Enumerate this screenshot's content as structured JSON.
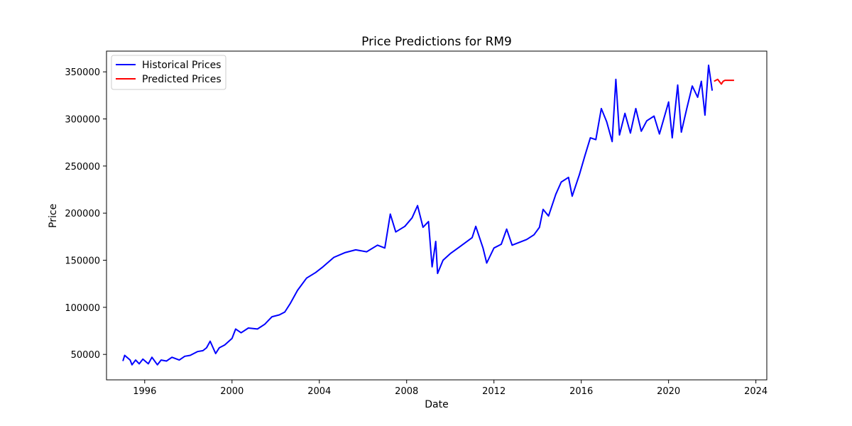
{
  "chart_data": {
    "type": "line",
    "title": "Price Predictions for RM9",
    "xlabel": "Date",
    "ylabel": "Price",
    "x_ticks": [
      "1996",
      "2000",
      "2004",
      "2008",
      "2012",
      "2016",
      "2020",
      "2024"
    ],
    "y_ticks": [
      "50000",
      "100000",
      "150000",
      "200000",
      "250000",
      "300000",
      "350000"
    ],
    "xlim": [
      "1994-04-01",
      "2024-07-01"
    ],
    "ylim": [
      23000,
      372000
    ],
    "grid": false,
    "legend_position": "top-left",
    "series": [
      {
        "name": "Historical Prices",
        "color": "#0000ff",
        "points": [
          [
            "1995-01-01",
            43000
          ],
          [
            "1995-02-01",
            49000
          ],
          [
            "1995-05-01",
            44000
          ],
          [
            "1995-06-01",
            39000
          ],
          [
            "1995-08-01",
            44000
          ],
          [
            "1995-10-01",
            40000
          ],
          [
            "1995-12-01",
            45000
          ],
          [
            "1996-03-01",
            40000
          ],
          [
            "1996-05-01",
            47000
          ],
          [
            "1996-08-01",
            39000
          ],
          [
            "1996-10-01",
            44000
          ],
          [
            "1997-01-01",
            43000
          ],
          [
            "1997-04-01",
            47000
          ],
          [
            "1997-08-01",
            44000
          ],
          [
            "1997-11-01",
            48000
          ],
          [
            "1998-02-01",
            49000
          ],
          [
            "1998-06-01",
            53000
          ],
          [
            "1998-09-01",
            54000
          ],
          [
            "1998-11-01",
            57000
          ],
          [
            "1999-01-01",
            64000
          ],
          [
            "1999-04-01",
            51000
          ],
          [
            "1999-06-01",
            57000
          ],
          [
            "1999-09-01",
            60000
          ],
          [
            "2000-01-01",
            67000
          ],
          [
            "2000-03-01",
            77000
          ],
          [
            "2000-06-01",
            73000
          ],
          [
            "2000-10-01",
            78000
          ],
          [
            "2001-03-01",
            77000
          ],
          [
            "2001-07-01",
            82000
          ],
          [
            "2001-11-01",
            90000
          ],
          [
            "2002-03-01",
            92000
          ],
          [
            "2002-06-01",
            95000
          ],
          [
            "2002-09-01",
            104000
          ],
          [
            "2003-01-01",
            118000
          ],
          [
            "2003-06-01",
            131000
          ],
          [
            "2003-11-01",
            137000
          ],
          [
            "2004-03-01",
            143000
          ],
          [
            "2004-09-01",
            153000
          ],
          [
            "2005-03-01",
            158000
          ],
          [
            "2005-09-01",
            161000
          ],
          [
            "2006-03-01",
            159000
          ],
          [
            "2006-09-01",
            166000
          ],
          [
            "2007-01-01",
            163000
          ],
          [
            "2007-04-01",
            199000
          ],
          [
            "2007-07-01",
            180000
          ],
          [
            "2007-12-01",
            186000
          ],
          [
            "2008-04-01",
            195000
          ],
          [
            "2008-07-01",
            208000
          ],
          [
            "2008-10-01",
            185000
          ],
          [
            "2009-01-01",
            191000
          ],
          [
            "2009-03-01",
            143000
          ],
          [
            "2009-05-01",
            170000
          ],
          [
            "2009-06-01",
            136000
          ],
          [
            "2009-09-01",
            150000
          ],
          [
            "2010-01-01",
            157000
          ],
          [
            "2010-06-01",
            164000
          ],
          [
            "2011-01-01",
            174000
          ],
          [
            "2011-03-01",
            186000
          ],
          [
            "2011-07-01",
            163000
          ],
          [
            "2011-09-01",
            147000
          ],
          [
            "2012-01-01",
            163000
          ],
          [
            "2012-05-01",
            167000
          ],
          [
            "2012-08-01",
            183000
          ],
          [
            "2012-11-01",
            166000
          ],
          [
            "2013-03-01",
            169000
          ],
          [
            "2013-07-01",
            172000
          ],
          [
            "2013-11-01",
            177000
          ],
          [
            "2014-02-01",
            185000
          ],
          [
            "2014-04-01",
            204000
          ],
          [
            "2014-07-01",
            197000
          ],
          [
            "2014-11-01",
            220000
          ],
          [
            "2015-02-01",
            233000
          ],
          [
            "2015-06-01",
            238000
          ],
          [
            "2015-08-01",
            218000
          ],
          [
            "2015-12-01",
            241000
          ],
          [
            "2016-03-01",
            261000
          ],
          [
            "2016-06-01",
            280000
          ],
          [
            "2016-09-01",
            278000
          ],
          [
            "2016-12-01",
            311000
          ],
          [
            "2017-03-01",
            297000
          ],
          [
            "2017-06-01",
            276000
          ],
          [
            "2017-08-01",
            342000
          ],
          [
            "2017-10-01",
            283000
          ],
          [
            "2018-01-01",
            306000
          ],
          [
            "2018-04-01",
            285000
          ],
          [
            "2018-07-01",
            311000
          ],
          [
            "2018-10-01",
            287000
          ],
          [
            "2019-01-01",
            298000
          ],
          [
            "2019-05-01",
            303000
          ],
          [
            "2019-08-01",
            284000
          ],
          [
            "2020-01-01",
            318000
          ],
          [
            "2020-03-01",
            280000
          ],
          [
            "2020-06-01",
            336000
          ],
          [
            "2020-08-01",
            286000
          ],
          [
            "2020-11-01",
            311000
          ],
          [
            "2021-02-01",
            335000
          ],
          [
            "2021-05-01",
            323000
          ],
          [
            "2021-07-01",
            340000
          ],
          [
            "2021-09-01",
            304000
          ],
          [
            "2021-11-01",
            357000
          ],
          [
            "2022-01-01",
            330000
          ]
        ]
      },
      {
        "name": "Predicted Prices",
        "color": "#ff0000",
        "points": [
          [
            "2022-02-01",
            340000
          ],
          [
            "2022-04-01",
            342000
          ],
          [
            "2022-06-01",
            337000
          ],
          [
            "2022-07-01",
            340000
          ],
          [
            "2022-08-01",
            341000
          ],
          [
            "2022-12-01",
            341000
          ],
          [
            "2023-01-01",
            341000
          ]
        ]
      }
    ]
  }
}
